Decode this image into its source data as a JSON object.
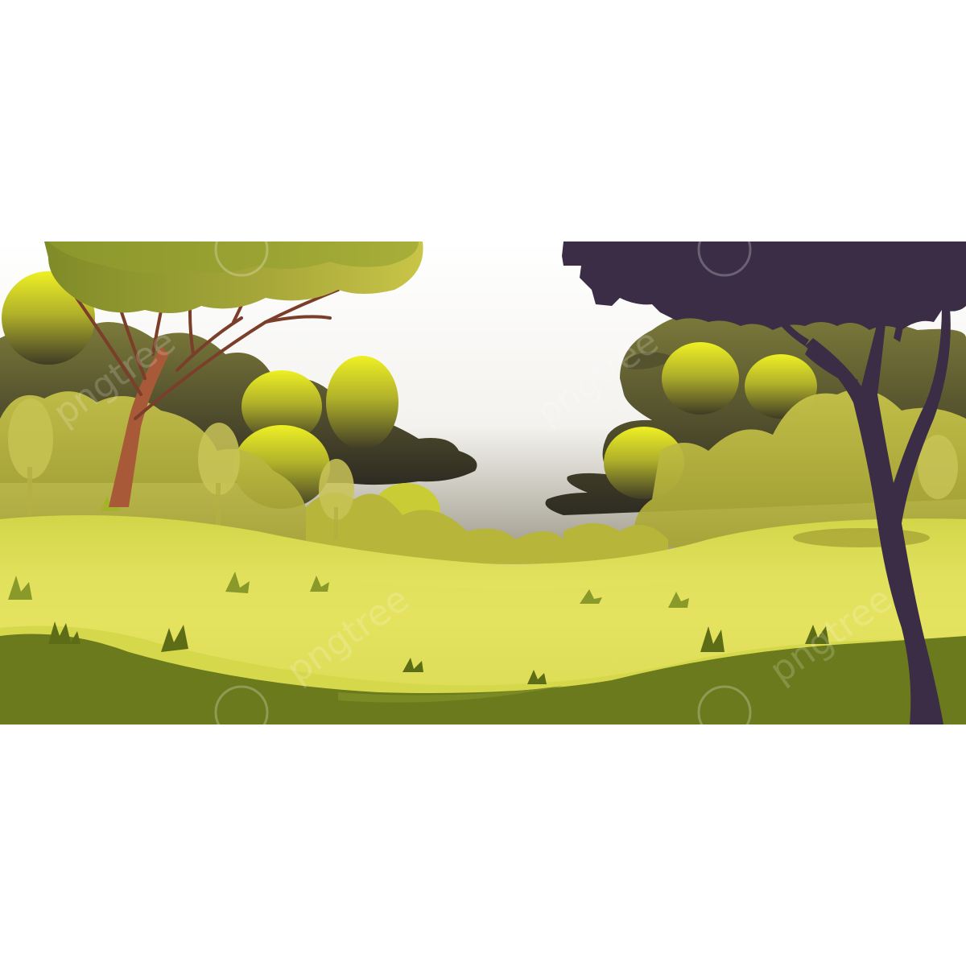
{
  "scene": {
    "subject": "forest-meadow-landscape",
    "colors": {
      "background": "#ffffff",
      "sky_top": "#ffffff",
      "sky_bottom": "#8f8a78",
      "foliage_bright": "#e8ec1a",
      "foliage_mid": "#a4a32c",
      "foliage_dark": "#4d4a2c",
      "meadow_light": "#ebe96b",
      "meadow_mid": "#c8cb3d",
      "ground_dark": "#6a7a1c",
      "left_trunk": "#a85a38",
      "left_branches": "#7a3e2a",
      "right_tree_silhouette": "#3a2d45"
    },
    "watermark": {
      "text": "pngtree"
    }
  }
}
